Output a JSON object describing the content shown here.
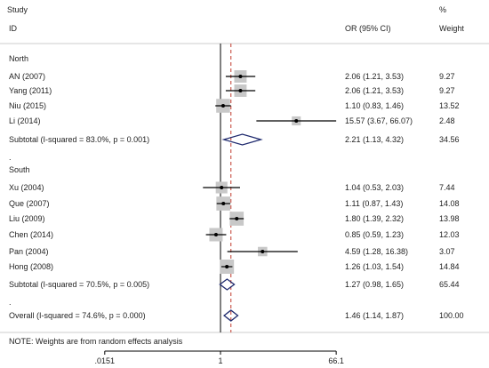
{
  "chart_data": {
    "type": "forest",
    "headers": {
      "study": "Study",
      "id": "ID",
      "ci": "OR (95% CI)",
      "pct": "%",
      "weight": "Weight"
    },
    "x_axis": {
      "scale": "log",
      "ticks": [
        {
          "value": 0.0151,
          "label": ".0151"
        },
        {
          "value": 1,
          "label": "1"
        },
        {
          "value": 66.1,
          "label": "66.1"
        }
      ]
    },
    "null_line": 1,
    "overall_line": 1.46,
    "note": "NOTE: Weights are from random effects analysis",
    "rows": [
      {
        "kind": "group",
        "label": "North"
      },
      {
        "kind": "study",
        "label": "AN (2007)",
        "or": 2.06,
        "lo": 1.21,
        "hi": 3.53,
        "ci_text": "2.06 (1.21, 3.53)",
        "weight": "9.27"
      },
      {
        "kind": "study",
        "label": "Yang (2011)",
        "or": 2.06,
        "lo": 1.21,
        "hi": 3.53,
        "ci_text": "2.06 (1.21, 3.53)",
        "weight": "9.27"
      },
      {
        "kind": "study",
        "label": "Niu (2015)",
        "or": 1.1,
        "lo": 0.83,
        "hi": 1.46,
        "ci_text": "1.10 (0.83, 1.46)",
        "weight": "13.52"
      },
      {
        "kind": "study",
        "label": "Li (2014)",
        "or": 15.57,
        "lo": 3.67,
        "hi": 66.07,
        "ci_text": "15.57 (3.67, 66.07)",
        "weight": "2.48"
      },
      {
        "kind": "subtotal",
        "label": "Subtotal  (I-squared = 83.0%, p = 0.001)",
        "or": 2.21,
        "lo": 1.13,
        "hi": 4.32,
        "ci_text": "2.21 (1.13, 4.32)",
        "weight": "34.56"
      },
      {
        "kind": "dot",
        "label": "."
      },
      {
        "kind": "group",
        "label": "South"
      },
      {
        "kind": "study",
        "label": "Xu (2004)",
        "or": 1.04,
        "lo": 0.53,
        "hi": 2.03,
        "ci_text": "1.04 (0.53, 2.03)",
        "weight": "7.44"
      },
      {
        "kind": "study",
        "label": "Que (2007)",
        "or": 1.11,
        "lo": 0.87,
        "hi": 1.43,
        "ci_text": "1.11 (0.87, 1.43)",
        "weight": "14.08"
      },
      {
        "kind": "study",
        "label": "Liu (2009)",
        "or": 1.8,
        "lo": 1.39,
        "hi": 2.32,
        "ci_text": "1.80 (1.39, 2.32)",
        "weight": "13.98"
      },
      {
        "kind": "study",
        "label": "Chen (2014)",
        "or": 0.85,
        "lo": 0.59,
        "hi": 1.23,
        "ci_text": "0.85 (0.59, 1.23)",
        "weight": "12.03"
      },
      {
        "kind": "study",
        "label": "Pan (2004)",
        "or": 4.59,
        "lo": 1.28,
        "hi": 16.38,
        "ci_text": "4.59 (1.28, 16.38)",
        "weight": "3.07"
      },
      {
        "kind": "study",
        "label": "Hong (2008)",
        "or": 1.26,
        "lo": 1.03,
        "hi": 1.54,
        "ci_text": "1.26 (1.03, 1.54)",
        "weight": "14.84"
      },
      {
        "kind": "subtotal",
        "label": "Subtotal  (I-squared = 70.5%, p = 0.005)",
        "or": 1.27,
        "lo": 0.98,
        "hi": 1.65,
        "ci_text": "1.27 (0.98, 1.65)",
        "weight": "65.44"
      },
      {
        "kind": "dot",
        "label": "."
      },
      {
        "kind": "overall",
        "label": "Overall  (I-squared = 74.6%, p = 0.000)",
        "or": 1.46,
        "lo": 1.14,
        "hi": 1.87,
        "ci_text": "1.46 (1.14, 1.87)",
        "weight": "100.00"
      }
    ],
    "colors": {
      "diamond": "#1f2a6e",
      "box": "#c8c8c8",
      "dashed_line": "#c0392b",
      "line": "#000000"
    }
  }
}
